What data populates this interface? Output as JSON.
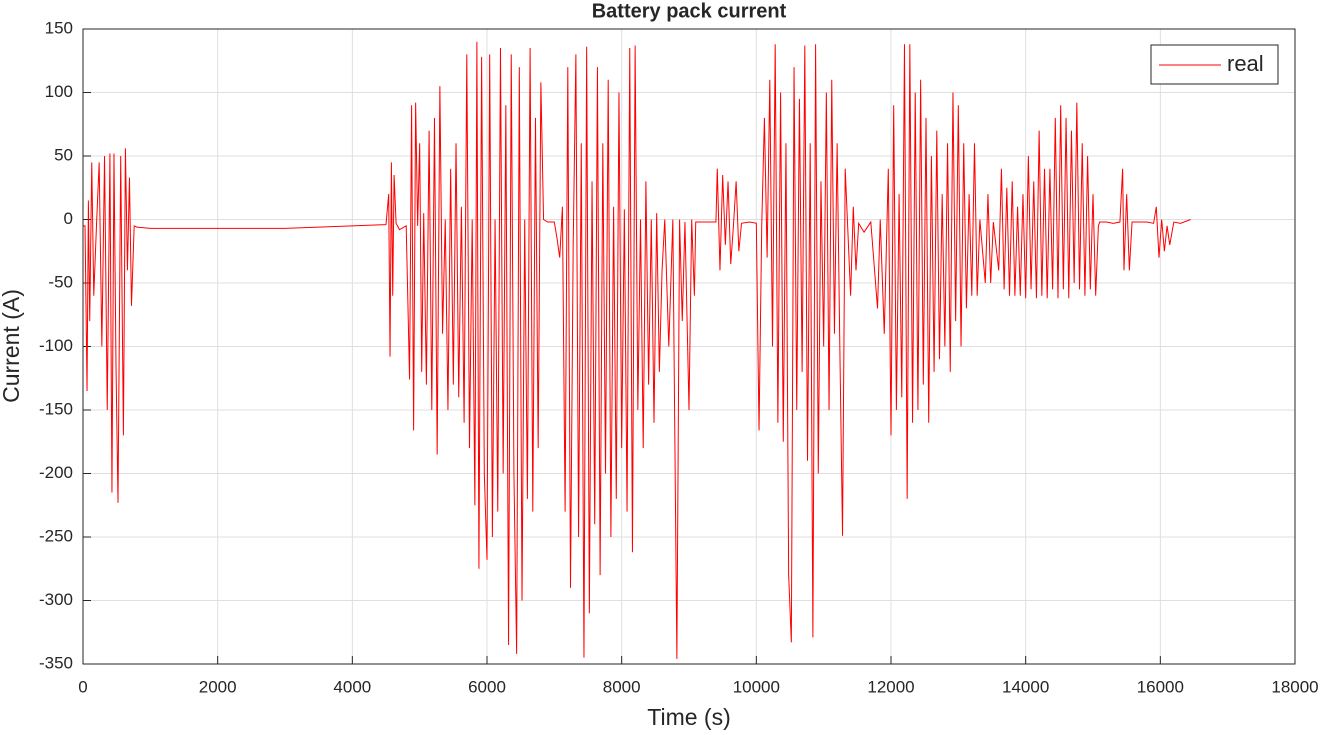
{
  "chart_data": {
    "type": "line",
    "title": "Battery pack current",
    "xlabel": "Time (s)",
    "ylabel": "Current (A)",
    "xlim": [
      0,
      18000
    ],
    "xticks": [
      0,
      2000,
      4000,
      6000,
      8000,
      10000,
      12000,
      14000,
      16000,
      18000
    ],
    "ylim": [
      -350,
      150
    ],
    "yticks": [
      -350,
      -300,
      -250,
      -200,
      -150,
      -100,
      -50,
      0,
      50,
      100,
      150
    ],
    "grid": true,
    "legend": "northeast",
    "x": [
      0,
      30,
      60,
      80,
      100,
      130,
      160,
      200,
      240,
      280,
      320,
      360,
      400,
      430,
      460,
      490,
      520,
      560,
      600,
      630,
      660,
      690,
      720,
      760,
      800,
      1000,
      2000,
      3000,
      4000,
      4500,
      4540,
      4560,
      4580,
      4600,
      4620,
      4650,
      4700,
      4800,
      4850,
      4880,
      4910,
      4940,
      4970,
      5000,
      5030,
      5060,
      5100,
      5140,
      5180,
      5220,
      5260,
      5300,
      5340,
      5380,
      5420,
      5460,
      5500,
      5540,
      5580,
      5620,
      5660,
      5700,
      5740,
      5780,
      5820,
      5850,
      5880,
      5920,
      5960,
      6000,
      6040,
      6080,
      6120,
      6160,
      6200,
      6240,
      6280,
      6320,
      6360,
      6400,
      6440,
      6480,
      6520,
      6560,
      6600,
      6640,
      6680,
      6720,
      6760,
      6800,
      6840,
      6900,
      7000,
      7040,
      7080,
      7120,
      7160,
      7200,
      7240,
      7280,
      7320,
      7360,
      7400,
      7440,
      7480,
      7520,
      7560,
      7600,
      7640,
      7680,
      7720,
      7760,
      7800,
      7840,
      7880,
      7920,
      7960,
      8000,
      8040,
      8080,
      8120,
      8160,
      8200,
      8240,
      8280,
      8320,
      8360,
      8400,
      8440,
      8480,
      8520,
      8560,
      8600,
      8640,
      8700,
      8760,
      8820,
      8860,
      8900,
      8940,
      9000,
      9040,
      9080,
      9100,
      9200,
      9400,
      9420,
      9460,
      9500,
      9540,
      9580,
      9620,
      9660,
      9700,
      9740,
      9780,
      9900,
      10000,
      10040,
      10080,
      10120,
      10160,
      10200,
      10240,
      10280,
      10320,
      10360,
      10400,
      10440,
      10480,
      10520,
      10560,
      10600,
      10640,
      10680,
      10720,
      10760,
      10800,
      10840,
      10880,
      10920,
      10960,
      11000,
      11040,
      11080,
      11120,
      11160,
      11200,
      11240,
      11280,
      11320,
      11360,
      11400,
      11440,
      11480,
      11520,
      11600,
      11700,
      11800,
      11840,
      11900,
      11960,
      12000,
      12040,
      12080,
      12120,
      12160,
      12200,
      12240,
      12280,
      12320,
      12360,
      12400,
      12440,
      12480,
      12520,
      12560,
      12600,
      12640,
      12680,
      12720,
      12760,
      12800,
      12840,
      12880,
      12920,
      12960,
      13000,
      13040,
      13080,
      13120,
      13160,
      13200,
      13240,
      13280,
      13320,
      13400,
      13440,
      13480,
      13520,
      13600,
      13640,
      13680,
      13720,
      13760,
      13800,
      13840,
      13880,
      13920,
      13960,
      14000,
      14040,
      14080,
      14120,
      14160,
      14200,
      14240,
      14280,
      14320,
      14360,
      14400,
      14440,
      14480,
      14520,
      14560,
      14600,
      14640,
      14680,
      14720,
      14760,
      14800,
      14840,
      14880,
      14920,
      14960,
      15000,
      15040,
      15080,
      15100,
      15200,
      15300,
      15400,
      15440,
      15460,
      15500,
      15540,
      15580,
      15700,
      15800,
      15900,
      15940,
      15980,
      16020,
      16060,
      16100,
      16140,
      16200,
      16300,
      16400,
      16450
    ],
    "series": [
      {
        "name": "real",
        "color": "#ff0000",
        "values": [
          -5,
          -5,
          -135,
          15,
          -80,
          45,
          -60,
          -5,
          45,
          -100,
          50,
          -150,
          52,
          -215,
          52,
          -115,
          -223,
          50,
          -170,
          56,
          -40,
          33,
          -68,
          -5,
          -6,
          -7,
          -7,
          -7,
          -5,
          -4,
          20,
          -108,
          45,
          -60,
          35,
          -3,
          -8,
          -5,
          -126,
          90,
          -166,
          92,
          -5,
          60,
          -120,
          5,
          -130,
          70,
          -150,
          80,
          -185,
          105,
          -90,
          0,
          -150,
          40,
          -130,
          60,
          -140,
          10,
          -160,
          130,
          -180,
          0,
          -225,
          140,
          -275,
          128,
          -200,
          -268,
          130,
          -250,
          0,
          -230,
          135,
          -200,
          90,
          -335,
          130,
          -200,
          -342,
          120,
          -300,
          0,
          -220,
          135,
          -230,
          80,
          -180,
          108,
          0,
          -2,
          -2,
          -15,
          -30,
          10,
          -230,
          120,
          -290,
          -20,
          130,
          -250,
          60,
          -345,
          136,
          -310,
          30,
          -240,
          120,
          -280,
          60,
          -200,
          110,
          -250,
          10,
          -220,
          100,
          -180,
          8,
          -230,
          135,
          -262,
          137,
          -150,
          0,
          -180,
          30,
          -130,
          0,
          -160,
          5,
          -120,
          -40,
          0,
          -100,
          0,
          -346,
          0,
          -80,
          -2,
          -150,
          0,
          -60,
          -2,
          -2,
          -2,
          40,
          -40,
          35,
          -20,
          30,
          -35,
          -5,
          30,
          -25,
          -3,
          -2,
          -3,
          -166,
          -5,
          80,
          -30,
          110,
          -100,
          138,
          -160,
          100,
          -175,
          60,
          -280,
          -333,
          120,
          -150,
          95,
          -120,
          137,
          -190,
          60,
          -329,
          138,
          -200,
          30,
          -100,
          100,
          -150,
          110,
          -90,
          60,
          -100,
          -249,
          40,
          -10,
          -60,
          10,
          -40,
          -3,
          -10,
          -2,
          -70,
          0,
          -90,
          40,
          -170,
          90,
          -150,
          20,
          -140,
          138,
          -220,
          138,
          -160,
          100,
          -150,
          110,
          -130,
          80,
          -160,
          50,
          -120,
          70,
          -110,
          20,
          -100,
          60,
          -120,
          100,
          -80,
          90,
          -100,
          60,
          -70,
          20,
          -60,
          60,
          -60,
          0,
          -50,
          20,
          -50,
          -2,
          -40,
          40,
          -55,
          25,
          -60,
          30,
          -60,
          10,
          -60,
          20,
          -62,
          50,
          -55,
          30,
          -62,
          70,
          -60,
          40,
          -62,
          40,
          -55,
          80,
          -62,
          90,
          -55,
          80,
          -62,
          70,
          -50,
          92,
          -55,
          60,
          -60,
          50,
          -55,
          20,
          -60,
          -5,
          -2,
          -2,
          -3,
          -2,
          40,
          -40,
          20,
          -40,
          -2,
          -2,
          -2,
          -3,
          10,
          -30,
          0,
          -25,
          -5,
          -20,
          -2,
          -3,
          -1,
          0
        ]
      }
    ]
  }
}
